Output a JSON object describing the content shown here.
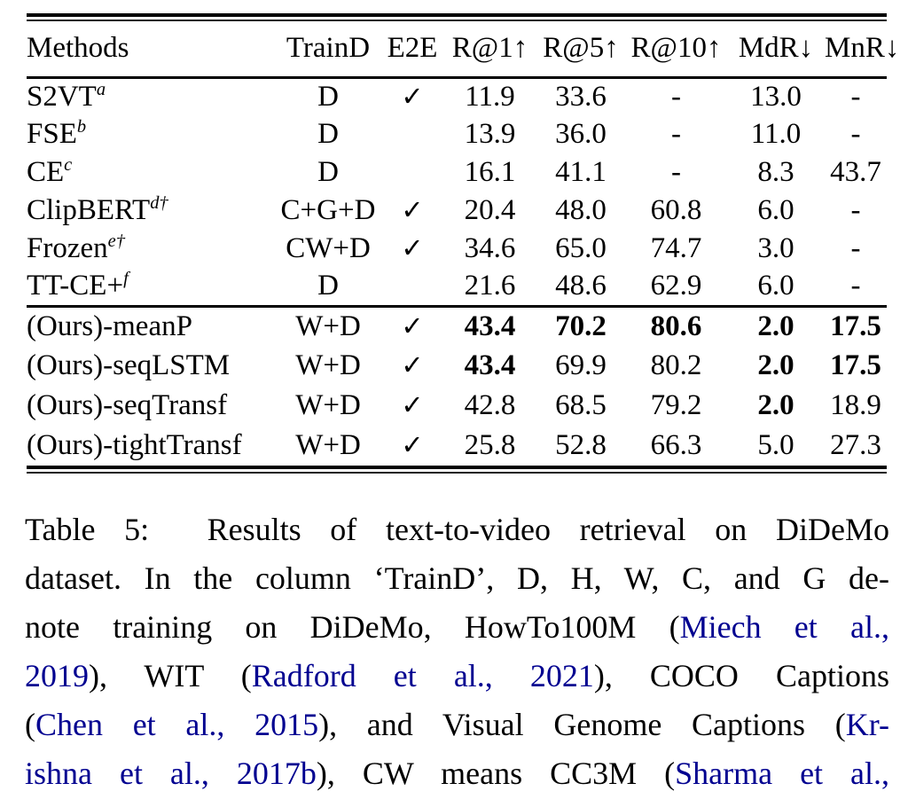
{
  "colors": {
    "text": "#000000",
    "citation_link": "#000090",
    "rule": "#000000",
    "background": "#ffffff"
  },
  "table": {
    "check_symbol": "✓",
    "dash_symbol": "-",
    "columns": [
      "Methods",
      "TrainD",
      "E2E",
      "R@1↑",
      "R@5↑",
      "R@10↑",
      "MdR↓",
      "MnR↓"
    ],
    "baseline_rows": [
      {
        "method": "S2VT",
        "sup": "a",
        "traind": "D",
        "e2e": true,
        "values": [
          "11.9",
          "33.6",
          "-",
          "13.0",
          "-"
        ],
        "bold": [
          false,
          false,
          false,
          false,
          false
        ]
      },
      {
        "method": "FSE",
        "sup": "b",
        "traind": "D",
        "e2e": false,
        "values": [
          "13.9",
          "36.0",
          "-",
          "11.0",
          "-"
        ],
        "bold": [
          false,
          false,
          false,
          false,
          false
        ]
      },
      {
        "method": "CE",
        "sup": "c",
        "traind": "D",
        "e2e": false,
        "values": [
          "16.1",
          "41.1",
          "-",
          "8.3",
          "43.7"
        ],
        "bold": [
          false,
          false,
          false,
          false,
          false
        ]
      },
      {
        "method": "ClipBERT",
        "sup": "d†",
        "traind": "C+G+D",
        "e2e": true,
        "values": [
          "20.4",
          "48.0",
          "60.8",
          "6.0",
          "-"
        ],
        "bold": [
          false,
          false,
          false,
          false,
          false
        ]
      },
      {
        "method": "Frozen",
        "sup": "e†",
        "traind": "CW+D",
        "e2e": true,
        "values": [
          "34.6",
          "65.0",
          "74.7",
          "3.0",
          "-"
        ],
        "bold": [
          false,
          false,
          false,
          false,
          false
        ]
      },
      {
        "method": "TT-CE+",
        "sup": "f",
        "traind": "D",
        "e2e": false,
        "values": [
          "21.6",
          "48.6",
          "62.9",
          "6.0",
          "-"
        ],
        "bold": [
          false,
          false,
          false,
          false,
          false
        ]
      }
    ],
    "ours_rows": [
      {
        "method": "(Ours)-meanP",
        "sup": "",
        "traind": "W+D",
        "e2e": true,
        "values": [
          "43.4",
          "70.2",
          "80.6",
          "2.0",
          "17.5"
        ],
        "bold": [
          true,
          true,
          true,
          true,
          true
        ]
      },
      {
        "method": "(Ours)-seqLSTM",
        "sup": "",
        "traind": "W+D",
        "e2e": true,
        "values": [
          "43.4",
          "69.9",
          "80.2",
          "2.0",
          "17.5"
        ],
        "bold": [
          true,
          false,
          false,
          true,
          true
        ]
      },
      {
        "method": "(Ours)-seqTransf",
        "sup": "",
        "traind": "W+D",
        "e2e": true,
        "values": [
          "42.8",
          "68.5",
          "79.2",
          "2.0",
          "18.9"
        ],
        "bold": [
          false,
          false,
          false,
          true,
          false
        ]
      },
      {
        "method": "(Ours)-tightTransf",
        "sup": "",
        "traind": "W+D",
        "e2e": true,
        "values": [
          "25.8",
          "52.8",
          "66.3",
          "5.0",
          "27.3"
        ],
        "bold": [
          false,
          false,
          false,
          false,
          false
        ]
      }
    ]
  },
  "caption": {
    "lines": [
      [
        {
          "t": "Table 5:  Results of text-to-video retrieval on DiDeMo",
          "link": false
        }
      ],
      [
        {
          "t": "dataset. In the column ‘TrainD’, D, H, W, C, and G de-",
          "link": false
        }
      ],
      [
        {
          "t": "note training on DiDeMo, HowTo100M (",
          "link": false
        },
        {
          "t": "Miech et al.,",
          "link": true
        }
      ],
      [
        {
          "t": "2019",
          "link": true
        },
        {
          "t": "), WIT (",
          "link": false
        },
        {
          "t": "Radford et al., 2021",
          "link": true
        },
        {
          "t": "), COCO Captions",
          "link": false
        }
      ],
      [
        {
          "t": "(",
          "link": false
        },
        {
          "t": "Chen et al., 2015",
          "link": true
        },
        {
          "t": "), and Visual Genome Captions (",
          "link": false
        },
        {
          "t": "Kr-",
          "link": true
        }
      ],
      [
        {
          "t": "ishna et al., 2017b",
          "link": true
        },
        {
          "t": "), CW means CC3M (",
          "link": false
        },
        {
          "t": "Sharma et al.,",
          "link": true
        }
      ]
    ]
  }
}
